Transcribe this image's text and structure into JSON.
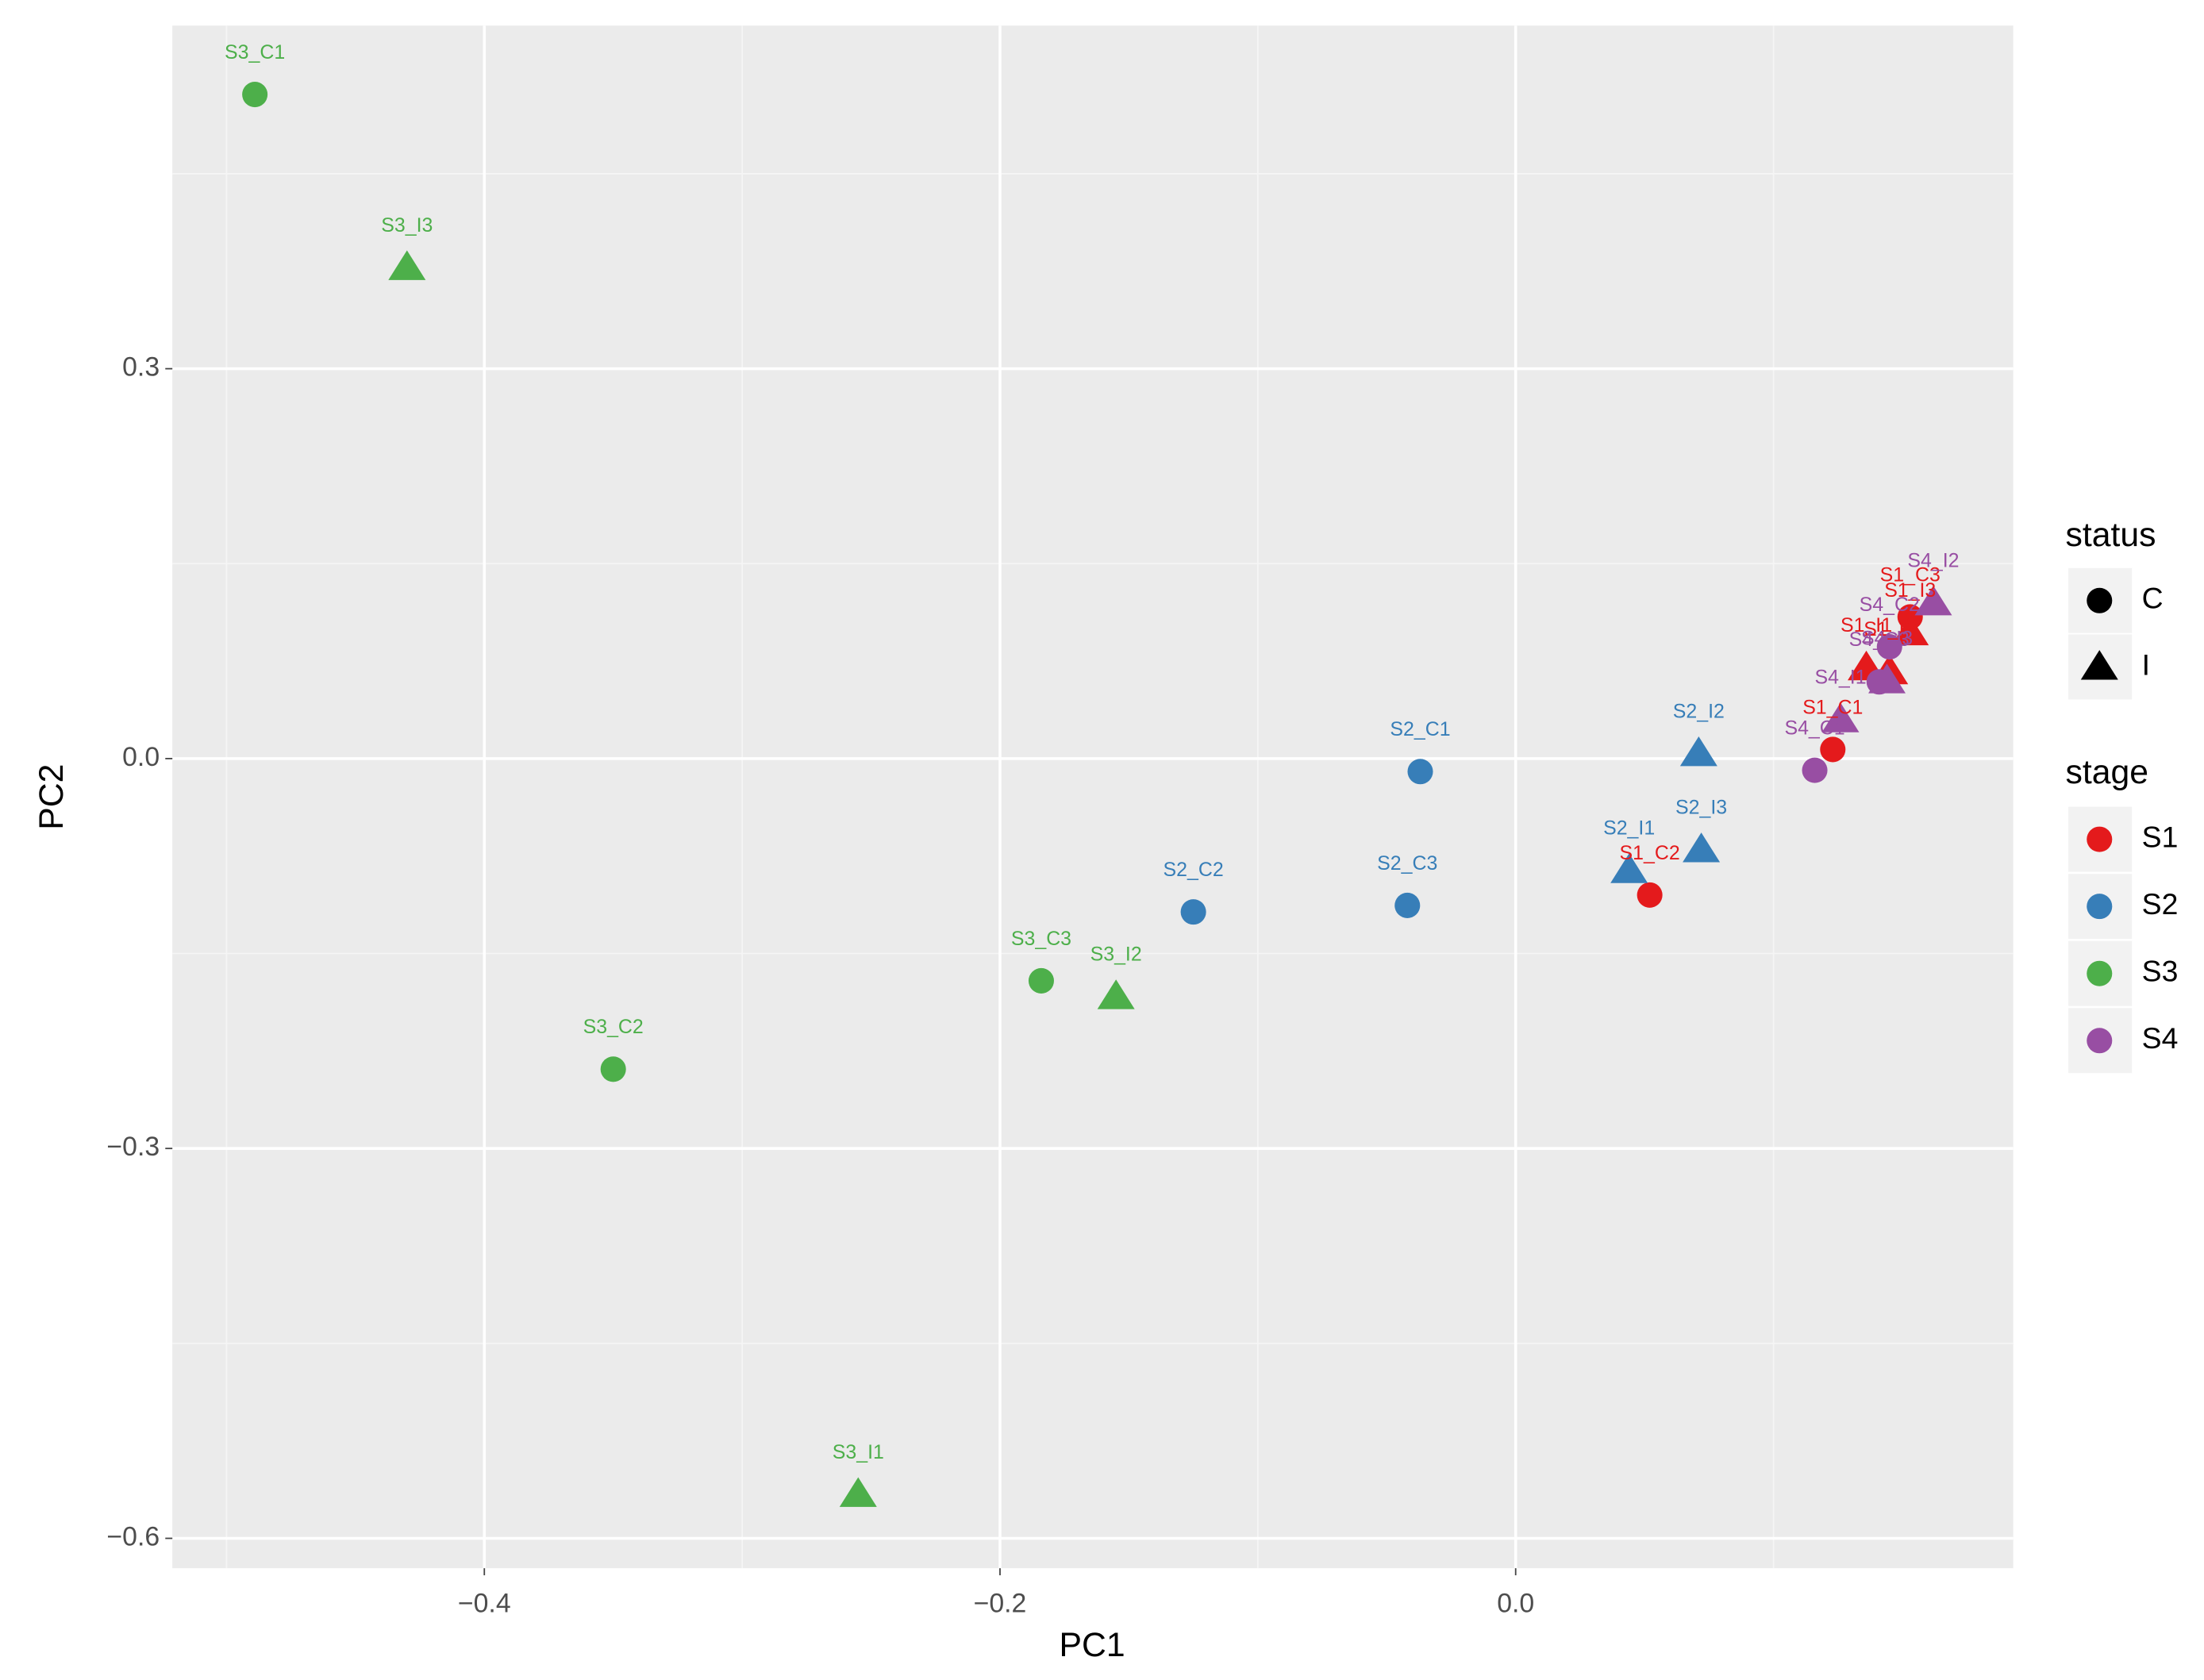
{
  "chart_data": {
    "type": "scatter",
    "x_label": "PC1",
    "y_label": "PC2",
    "xlim": [
      -0.521,
      0.193
    ],
    "ylim": [
      -0.623,
      0.564
    ],
    "xticks": [
      {
        "value": -0.4,
        "label": "−0.4"
      },
      {
        "value": -0.2,
        "label": "−0.2"
      },
      {
        "value": 0,
        "label": "0.0"
      }
    ],
    "yticks": [
      {
        "value": -0.6,
        "label": "−0.6"
      },
      {
        "value": -0.3,
        "label": "−0.3"
      },
      {
        "value": 0,
        "label": "0.0"
      },
      0.3
    ],
    "grid": true,
    "shape_legend": {
      "title": "status",
      "entries": [
        {
          "label": "C",
          "shape": "circle"
        },
        {
          "label": "I",
          "shape": "triangle"
        }
      ]
    },
    "color_legend_title": "stage",
    "series": [
      {
        "name": "S1",
        "color": "#e41a1c",
        "labels": [
          "S1_C1",
          "S1_C2",
          "S1_C3",
          "S1_I1",
          "S1_I2",
          "S1_I3"
        ],
        "status": [
          "C",
          "C",
          "C",
          "I",
          "I",
          "I"
        ],
        "x": [
          0.123,
          0.052,
          0.153,
          0.136,
          0.145,
          0.153
        ],
        "values": [
          0.007,
          -0.105,
          0.109,
          0.07,
          0.067,
          0.097
        ]
      },
      {
        "name": "S2",
        "color": "#377eb8",
        "labels": [
          "S2_C1",
          "S2_C2",
          "S2_C3",
          "S2_I1",
          "S2_I2",
          "S2_I3"
        ],
        "status": [
          "C",
          "C",
          "C",
          "I",
          "I",
          "I"
        ],
        "x": [
          -0.037,
          -0.125,
          -0.042,
          0.044,
          0.071,
          0.072
        ],
        "values": [
          -0.01,
          -0.118,
          -0.113,
          -0.086,
          0.004,
          -0.07
        ]
      },
      {
        "name": "S3",
        "color": "#4daf4a",
        "labels": [
          "S3_C1",
          "S3_C2",
          "S3_C3",
          "S3_I1",
          "S3_I2",
          "S3_I3"
        ],
        "status": [
          "C",
          "C",
          "C",
          "I",
          "I",
          "I"
        ],
        "x": [
          -0.489,
          -0.35,
          -0.184,
          -0.255,
          -0.155,
          -0.43
        ],
        "values": [
          0.511,
          -0.239,
          -0.171,
          -0.566,
          -0.183,
          0.378
        ]
      },
      {
        "name": "S4",
        "color": "#984ea3",
        "labels": [
          "S4_C1",
          "S4_C2",
          "S4_C3",
          "S4_I1",
          "S4_I2",
          "S4_I3"
        ],
        "status": [
          "C",
          "C",
          "C",
          "I",
          "I",
          "I"
        ],
        "x": [
          0.116,
          0.145,
          0.141,
          0.126,
          0.162,
          0.144
        ],
        "values": [
          -0.009,
          0.086,
          0.059,
          0.03,
          0.12,
          0.06
        ]
      }
    ]
  }
}
